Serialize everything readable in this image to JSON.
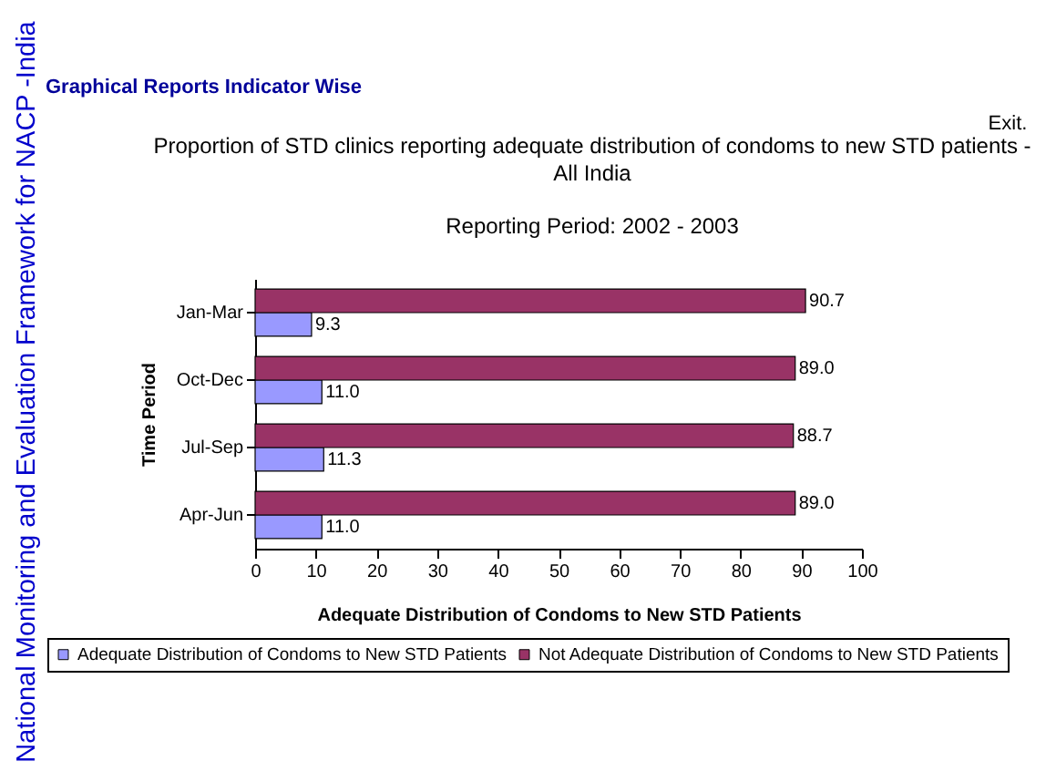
{
  "chart_data": {
    "type": "bar",
    "orientation": "horizontal",
    "title": "Proportion of STD clinics reporting adequate distribution of condoms to new STD patients - All India",
    "subtitle": "Reporting Period: 2002 - 2003",
    "xlabel": "Adequate Distribution of Condoms to New STD Patients",
    "ylabel": "Time Period",
    "categories": [
      "Jan-Mar",
      "Oct-Dec",
      "Jul-Sep",
      "Apr-Jun"
    ],
    "series": [
      {
        "name": "Adequate Distribution of Condoms to New STD Patients",
        "color": "#9999ff",
        "values": [
          9.3,
          11.0,
          11.3,
          11.0
        ],
        "value_labels": [
          "9.3",
          "11.0",
          "11.3",
          "11.0"
        ]
      },
      {
        "name": "Not Adequate Distribution of Condoms to New STD Patients",
        "color": "#993366",
        "values": [
          90.7,
          89.0,
          88.7,
          89.0
        ],
        "value_labels": [
          "90.7",
          "89.0",
          "88.7",
          "89.0"
        ]
      }
    ],
    "xlim": [
      0,
      100
    ],
    "xticks": [
      0,
      10,
      20,
      30,
      40,
      50,
      60,
      70,
      80,
      90,
      100
    ],
    "legend": "bottom",
    "annotations": [
      "National Monitoring and Evaluation Framework for NACP -India",
      "Graphical Reports Indicator Wise",
      "Exit."
    ]
  }
}
